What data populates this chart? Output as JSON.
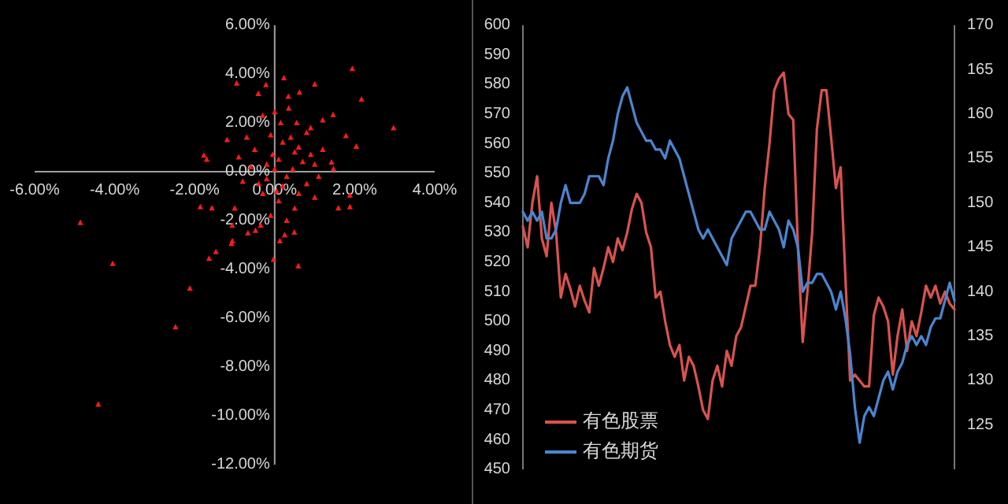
{
  "chart_data": [
    {
      "type": "scatter",
      "color": "#ff1a1a",
      "marker": "triangle",
      "grid": false,
      "x": [
        1.94,
        2.17,
        2.97,
        1.0,
        0.23,
        -0.22,
        -0.95,
        -0.41,
        0.34,
        0.62,
        1.46,
        1.2,
        1.78,
        2.04,
        0.9,
        0,
        -1.19,
        -1.77,
        -1.7,
        1.42,
        1.47,
        1.88,
        1.59,
        1.88,
        1.0,
        -1.86,
        -1.57,
        -1.06,
        -1.06,
        -1.08,
        -0.67,
        -0.48,
        -1.47,
        -1.64,
        -0.03,
        0.59,
        0.13,
        0.49,
        -4.86,
        -4.05,
        -2.12,
        -2.48,
        -4.41,
        0.1,
        -0.2,
        0.3,
        -0.4,
        0.5,
        0.2,
        -0.1,
        0.4,
        0.6,
        -0.6,
        -0.3,
        0.1,
        0.5,
        0.3,
        -0.1,
        0.8,
        1.0,
        0.9,
        -0.8,
        -0.5,
        0.2,
        0.0,
        -0.2,
        0.6,
        0.7,
        0.15,
        -0.3,
        0.35,
        -0.7,
        0.8,
        1.2,
        -1.0,
        0.25,
        -0.35,
        0.45,
        -0.05,
        0.05,
        1.1,
        -0.9,
        0.55
      ],
      "values": [
        4.22,
        2.97,
        1.79,
        3.58,
        3.84,
        3.56,
        3.62,
        3.19,
        3.08,
        3.25,
        2.33,
        2.11,
        1.47,
        1.03,
        1.79,
        2.44,
        1.31,
        0.67,
        0.5,
        0.39,
        0.11,
        -0.97,
        -1.49,
        -1.44,
        -1.06,
        -1.44,
        -1.49,
        -2.2,
        -2.84,
        -2.95,
        -2.52,
        -2.41,
        -3.28,
        -3.56,
        -3.6,
        -3.86,
        -2.84,
        -2.48,
        -2.09,
        -3.77,
        -4.78,
        -6.36,
        -9.53,
        0.5,
        0.3,
        -0.2,
        -0.5,
        0.8,
        1.2,
        1.5,
        1.4,
        1.0,
        0.2,
        -0.9,
        -1.2,
        -1.5,
        -2.0,
        -1.8,
        -0.5,
        0.3,
        0.7,
        -0.4,
        0.9,
        -0.6,
        0.1,
        -0.3,
        -0.9,
        0.4,
        2.0,
        2.3,
        2.6,
        1.4,
        1.6,
        0.9,
        -1.5,
        -2.6,
        -2.2,
        0.1,
        0.7,
        -0.8,
        -0.2,
        0.6,
        2.0
      ],
      "xlim": [
        -6,
        4
      ],
      "ylim": [
        -12,
        6
      ],
      "xticks": [
        {
          "value": -6,
          "label": "-6.00%"
        },
        {
          "value": -4,
          "label": "-4.00%"
        },
        {
          "value": -2,
          "label": "-2.00%"
        },
        {
          "value": 0,
          "label": "0.00%"
        },
        {
          "value": 2,
          "label": "2.00%"
        },
        {
          "value": 4,
          "label": "4.00%"
        }
      ],
      "yticks": [
        {
          "value": -12,
          "label": "-12.00%"
        },
        {
          "value": -10,
          "label": "-10.00%"
        },
        {
          "value": -8,
          "label": "-8.00%"
        },
        {
          "value": -6,
          "label": "-6.00%"
        },
        {
          "value": -4,
          "label": "-4.00%"
        },
        {
          "value": -2,
          "label": "-2.00%"
        },
        {
          "value": 0,
          "label": "0.00%"
        },
        {
          "value": 2,
          "label": "2.00%"
        },
        {
          "value": 4,
          "label": "4.00%"
        },
        {
          "value": 6,
          "label": "6.00%"
        }
      ]
    },
    {
      "type": "line",
      "grid": false,
      "legend": "bottom left",
      "categories": [
        null,
        null,
        null,
        null,
        null,
        null,
        null,
        null,
        null,
        null,
        null,
        null,
        null,
        null,
        null,
        null,
        null,
        null,
        null,
        null,
        null,
        null,
        null,
        null,
        null,
        null,
        null,
        null,
        null,
        null,
        null,
        null,
        null,
        null,
        null,
        null,
        null,
        null,
        null,
        null,
        null,
        null,
        null,
        null,
        null,
        null,
        null,
        null,
        null,
        null,
        null,
        null,
        null,
        null,
        null,
        null,
        null,
        null,
        null,
        null,
        null,
        null,
        null,
        null,
        null,
        null,
        null,
        null,
        null,
        null,
        null,
        null,
        null,
        null,
        null,
        null,
        null,
        null,
        null,
        null,
        null,
        null,
        null,
        null,
        null,
        null,
        null,
        null,
        null,
        null,
        null,
        null
      ],
      "series": [
        {
          "name": "有色股票",
          "color": "#d9534f",
          "values": [
            532,
            525,
            540,
            549,
            528,
            522,
            540,
            530,
            508,
            516,
            511,
            505,
            512,
            507,
            503,
            518,
            512,
            518,
            525,
            520,
            528,
            524,
            530,
            538,
            543,
            540,
            530,
            525,
            508,
            510,
            500,
            492,
            488,
            492,
            480,
            488,
            485,
            478,
            470,
            467,
            480,
            485,
            478,
            490,
            485,
            495,
            498,
            505,
            512,
            512,
            525,
            545,
            560,
            578,
            582,
            584,
            570,
            568,
            525,
            493,
            510,
            530,
            565,
            578,
            578,
            562,
            545,
            552,
            515,
            480,
            482,
            480,
            478,
            478,
            502,
            508,
            505,
            500,
            482,
            495,
            504,
            490,
            500,
            495,
            503,
            512,
            508,
            512,
            506,
            510,
            506,
            504
          ]
        },
        {
          "name": "有色期货",
          "color": "#4a86d0",
          "axis": "y2",
          "values": [
            149,
            148,
            149,
            148,
            149,
            146,
            146,
            147,
            150,
            152,
            150,
            150,
            150,
            151,
            153,
            153,
            153,
            152,
            155,
            157,
            160,
            162,
            163,
            161,
            159,
            158,
            157,
            157,
            156,
            156,
            155,
            157,
            156,
            155,
            153,
            151,
            149,
            147,
            146,
            147,
            146,
            145,
            144,
            143,
            146,
            147,
            148,
            149,
            149,
            148,
            147,
            147,
            149,
            148,
            147,
            145,
            148,
            147,
            145,
            140,
            141,
            141,
            142,
            142,
            141,
            140,
            138,
            140,
            137,
            133,
            127,
            123,
            126,
            127,
            126,
            128,
            130,
            131,
            129,
            131,
            132,
            134,
            135,
            134,
            135,
            134,
            136,
            137,
            137,
            139,
            141,
            139
          ]
        }
      ],
      "ylim": [
        450,
        600
      ],
      "yticks": [
        450,
        460,
        470,
        480,
        490,
        500,
        510,
        520,
        530,
        540,
        550,
        560,
        570,
        580,
        590,
        600
      ],
      "y2lim": [
        120,
        170
      ],
      "y2ticks": [
        125,
        130,
        135,
        140,
        145,
        150,
        155,
        160,
        165,
        170
      ]
    }
  ]
}
